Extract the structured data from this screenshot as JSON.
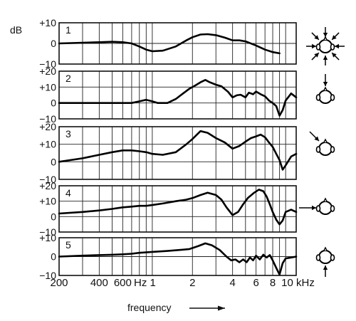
{
  "chart_data": {
    "type": "line",
    "xlabel": "frequency",
    "ylabel": "dB",
    "x_scale": "log",
    "x_ticks": [
      {
        "value": 200,
        "label": "200"
      },
      {
        "value": 400,
        "label": "400"
      },
      {
        "value": 600,
        "label": "600"
      },
      {
        "value": 1000,
        "label": "Hz 1"
      },
      {
        "value": 2000,
        "label": "2"
      },
      {
        "value": 4000,
        "label": "4"
      },
      {
        "value": 6000,
        "label": "6"
      },
      {
        "value": 8000,
        "label": "8"
      },
      {
        "value": 10000,
        "label": "10 kHz"
      }
    ],
    "x_gridlines": [
      200,
      300,
      400,
      500,
      600,
      700,
      800,
      900,
      1000,
      2000,
      3000,
      4000,
      5000,
      6000,
      7000,
      8000,
      9000,
      10000
    ],
    "grid": true,
    "panels": [
      {
        "label": "1",
        "ylim": [
          -10,
          10
        ],
        "yticks": [
          {
            "value": 10,
            "label": "+10"
          },
          {
            "value": 0,
            "label": "0"
          },
          {
            "value": -10,
            "label": "−10"
          }
        ],
        "x": [
          200,
          300,
          400,
          500,
          600,
          700,
          800,
          900,
          1000,
          1200,
          1500,
          1800,
          2000,
          2300,
          2600,
          3000,
          3500,
          4000,
          4500,
          5000,
          6000,
          7000,
          8000,
          9000
        ],
        "y": [
          0,
          0.3,
          0.6,
          0.8,
          0.6,
          0,
          -1.5,
          -3,
          -3.8,
          -3.5,
          -1.5,
          1.5,
          3,
          4.3,
          4.5,
          4,
          2.8,
          1.5,
          1.5,
          1,
          -1,
          -3,
          -4.2,
          -4.8
        ],
        "direction_icon": "sound-from-all-directions-icon"
      },
      {
        "label": "2",
        "ylim": [
          -10,
          20
        ],
        "yticks": [
          {
            "value": 20,
            "label": "+20"
          },
          {
            "value": 10,
            "label": "+10"
          },
          {
            "value": 0,
            "label": "0"
          },
          {
            "value": -10,
            "label": "−10"
          }
        ],
        "x": [
          200,
          300,
          400,
          500,
          600,
          700,
          800,
          900,
          1000,
          1100,
          1300,
          1500,
          1700,
          1900,
          2100,
          2300,
          2500,
          2700,
          3000,
          3300,
          3700,
          4000,
          4300,
          4600,
          5000,
          5300,
          5700,
          6000,
          6500,
          7000,
          7500,
          8000,
          8500,
          9000,
          9500,
          10000,
          11000,
          12000
        ],
        "y": [
          0,
          0,
          0,
          0,
          0,
          0,
          1,
          2,
          1,
          0,
          0,
          2.5,
          6,
          9,
          11,
          13,
          14.5,
          13,
          11.5,
          10.5,
          7,
          3.5,
          4.8,
          5.2,
          3.5,
          6.5,
          5.5,
          7.2,
          5.5,
          4.2,
          1.5,
          0,
          -2,
          -8,
          -4.5,
          1.5,
          6,
          3.5
        ],
        "direction_icon": "sound-from-front-icon"
      },
      {
        "label": "3",
        "ylim": [
          -10,
          20
        ],
        "yticks": [
          {
            "value": 20,
            "label": "+20"
          },
          {
            "value": 10,
            "label": "+10"
          },
          {
            "value": 0,
            "label": "0"
          },
          {
            "value": -10,
            "label": "−10"
          }
        ],
        "x": [
          200,
          300,
          400,
          500,
          600,
          700,
          800,
          900,
          1000,
          1200,
          1500,
          1800,
          2000,
          2300,
          2600,
          3000,
          3500,
          4000,
          4500,
          5000,
          5500,
          6000,
          6500,
          7000,
          7500,
          8000,
          8500,
          9000,
          9500,
          10000,
          11000,
          12000
        ],
        "y": [
          0,
          2,
          4,
          5.5,
          6.5,
          6.5,
          6,
          5.5,
          4.5,
          4,
          5.5,
          10,
          13,
          17.5,
          16.5,
          13.5,
          11,
          7.5,
          9,
          11.5,
          13.5,
          14.5,
          15.5,
          14,
          11,
          8.5,
          4.5,
          1,
          -4.5,
          -2,
          3,
          4.5
        ],
        "direction_icon": "sound-from-front-angle-icon"
      },
      {
        "label": "4",
        "ylim": [
          -10,
          20
        ],
        "yticks": [
          {
            "value": 20,
            "label": "+20"
          },
          {
            "value": 10,
            "label": "+10"
          },
          {
            "value": 0,
            "label": "0"
          },
          {
            "value": -10,
            "label": "−10"
          }
        ],
        "x": [
          200,
          300,
          400,
          500,
          600,
          700,
          800,
          900,
          1000,
          1200,
          1500,
          1800,
          2000,
          2300,
          2600,
          3000,
          3300,
          3600,
          4000,
          4400,
          4800,
          5200,
          5800,
          6300,
          6800,
          7200,
          7600,
          8000,
          8500,
          9000,
          9500,
          10000,
          11000,
          12000
        ],
        "y": [
          2,
          3,
          4,
          5,
          6,
          6.5,
          7,
          7,
          7.5,
          8.5,
          10,
          11,
          12,
          14,
          15.5,
          14,
          11,
          6,
          1,
          3,
          8,
          12,
          15.5,
          17.5,
          16.5,
          13,
          8,
          3,
          -2,
          -5,
          -2.5,
          3,
          4.5,
          3
        ],
        "direction_icon": "sound-from-side-icon"
      },
      {
        "label": "5",
        "ylim": [
          -10,
          10
        ],
        "yticks": [
          {
            "value": 10,
            "label": "+10"
          },
          {
            "value": 0,
            "label": "0"
          },
          {
            "value": -10,
            "label": "−10"
          }
        ],
        "x": [
          200,
          300,
          400,
          500,
          600,
          700,
          800,
          1000,
          1300,
          1600,
          1900,
          2200,
          2500,
          2800,
          3200,
          3600,
          3900,
          4200,
          4500,
          4800,
          5100,
          5400,
          5700,
          6000,
          6400,
          6800,
          7200,
          7600,
          8000,
          8500,
          9000,
          9500,
          10000,
          11000,
          12000
        ],
        "y": [
          0,
          0.5,
          0.8,
          1,
          1.2,
          1.5,
          2,
          2.5,
          3,
          3.5,
          4,
          5.5,
          7,
          6,
          3.5,
          0,
          -2,
          -1.5,
          -3,
          -1.5,
          -3,
          -0.5,
          -2,
          0.5,
          -1.5,
          1,
          -0.5,
          0.8,
          -2,
          -6,
          -9.5,
          -3.5,
          -1,
          -0.5,
          0
        ],
        "direction_icon": "sound-from-below-icon"
      }
    ]
  }
}
